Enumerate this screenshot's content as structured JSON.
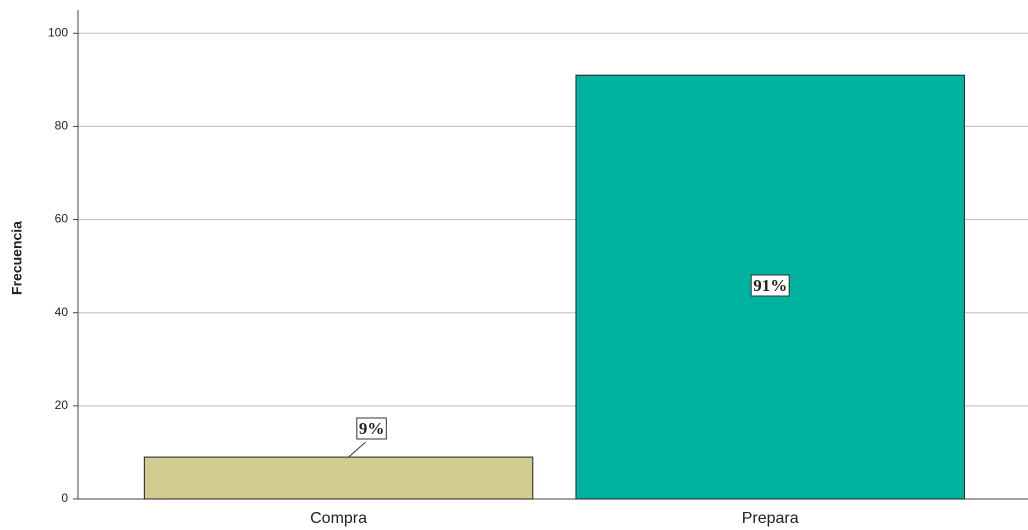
{
  "chart_data": {
    "type": "bar",
    "ylabel": "Frecuencia",
    "categories": [
      "Compra",
      "Prepara"
    ],
    "values": [
      9,
      91
    ],
    "value_labels": [
      "9%",
      "91%"
    ],
    "colors": [
      "#d2cc90",
      "#00b3a1"
    ],
    "ylim": [
      0,
      105
    ],
    "yticks": [
      0,
      20,
      40,
      60,
      80,
      100
    ],
    "grid": true
  }
}
